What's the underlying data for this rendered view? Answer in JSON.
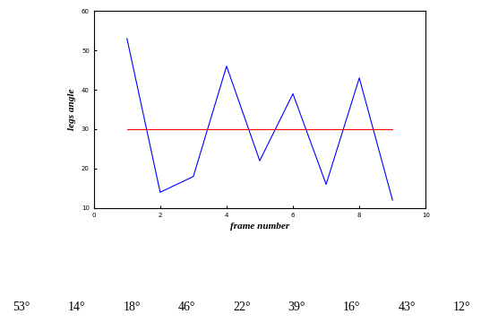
{
  "chart_data": {
    "type": "line",
    "x_label": "frame number",
    "y_label": "legs angle",
    "x": [
      1,
      2,
      3,
      4,
      5,
      6,
      7,
      8,
      9
    ],
    "series": [
      {
        "color": "#0000ff",
        "values": [
          53,
          14,
          18,
          46,
          22,
          39,
          16,
          43,
          12
        ],
        "value_labels": [
          "53°",
          "14°",
          "18°",
          "46°",
          "22°",
          "39°",
          "16°",
          "43°",
          "12°"
        ]
      },
      {
        "color": "#ff0000",
        "values": [
          30,
          30,
          30,
          30,
          30,
          30,
          30,
          30,
          30
        ]
      }
    ],
    "xlim": [
      0,
      10
    ],
    "xticks": [
      0,
      2,
      4,
      6,
      8,
      10
    ],
    "ylim": [
      10,
      60
    ],
    "yticks": [
      10,
      20,
      30,
      40,
      50,
      60
    ],
    "grid": false
  }
}
